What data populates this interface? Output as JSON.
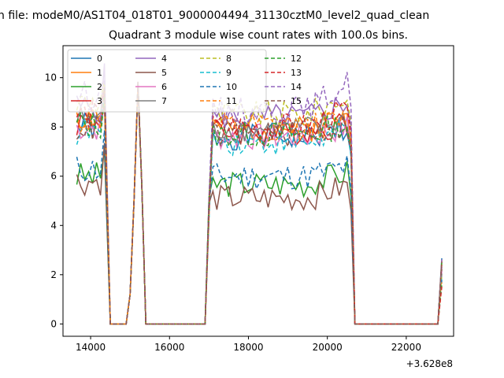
{
  "chart_data": {
    "type": "line",
    "suptitle": "n file: modeM0/AS1T04_018T01_9000004494_31130cztM0_level2_quad_clean",
    "title": "Quadrant 3 module wise count rates with 100.0s bins.",
    "xlabel": "",
    "ylabel": "",
    "x_offset_label": "+3.628e8",
    "xlim": [
      13300,
      23200
    ],
    "ylim": [
      -0.5,
      11.3
    ],
    "xticks": [
      14000,
      16000,
      18000,
      20000,
      22000
    ],
    "xtick_labels": [
      "14000",
      "16000",
      "18000",
      "20000",
      "22000"
    ],
    "yticks": [
      0,
      2,
      4,
      6,
      8,
      10
    ],
    "ytick_labels": [
      "0",
      "2",
      "4",
      "6",
      "8",
      "10"
    ],
    "grid": false,
    "legend": {
      "placement": "top-left",
      "columns": 4
    },
    "x_segments": [
      [
        13650,
        14350
      ],
      [
        14500,
        14500
      ],
      [
        14700,
        15400
      ],
      [
        15800,
        16900
      ],
      [
        17050,
        20650
      ],
      [
        20700,
        22800
      ]
    ],
    "series": [
      {
        "name": "0",
        "color": "#1f77b4",
        "dash": false,
        "levels": {
          "a": 8.0,
          "b": 7.6,
          "c": 7.9
        },
        "seed": 1
      },
      {
        "name": "1",
        "color": "#ff7f0e",
        "dash": false,
        "levels": {
          "a": 8.4,
          "b": 7.9,
          "c": 8.4
        },
        "seed": 2
      },
      {
        "name": "2",
        "color": "#2ca02c",
        "dash": false,
        "levels": {
          "a": 6.0,
          "b": 5.7,
          "c": 6.2
        },
        "seed": 3
      },
      {
        "name": "3",
        "color": "#d62728",
        "dash": false,
        "levels": {
          "a": 8.2,
          "b": 7.8,
          "c": 8.2
        },
        "seed": 4
      },
      {
        "name": "4",
        "color": "#9467bd",
        "dash": false,
        "levels": {
          "a": 8.8,
          "b": 8.4,
          "c": 9.0
        },
        "seed": 5
      },
      {
        "name": "5",
        "color": "#8c564b",
        "dash": false,
        "levels": {
          "a": 5.8,
          "b": 5.1,
          "c": 5.6
        },
        "seed": 6
      },
      {
        "name": "6",
        "color": "#e377c2",
        "dash": false,
        "levels": {
          "a": 8.0,
          "b": 7.6,
          "c": 8.0
        },
        "seed": 7
      },
      {
        "name": "7",
        "color": "#7f7f7f",
        "dash": false,
        "levels": {
          "a": 8.3,
          "b": 7.9,
          "c": 8.3
        },
        "seed": 8
      },
      {
        "name": "8",
        "color": "#bcbd22",
        "dash": true,
        "levels": {
          "a": 9.0,
          "b": 8.5,
          "c": 9.2
        },
        "seed": 9
      },
      {
        "name": "9",
        "color": "#17becf",
        "dash": true,
        "levels": {
          "a": 7.8,
          "b": 7.4,
          "c": 7.8
        },
        "seed": 10
      },
      {
        "name": "10",
        "color": "#1f77b4",
        "dash": true,
        "levels": {
          "a": 6.3,
          "b": 6.0,
          "c": 6.4
        },
        "seed": 11
      },
      {
        "name": "11",
        "color": "#ff7f0e",
        "dash": true,
        "levels": {
          "a": 8.3,
          "b": 8.0,
          "c": 8.3
        },
        "seed": 12
      },
      {
        "name": "12",
        "color": "#2ca02c",
        "dash": true,
        "levels": {
          "a": 8.1,
          "b": 7.7,
          "c": 8.1
        },
        "seed": 13
      },
      {
        "name": "13",
        "color": "#d62728",
        "dash": true,
        "levels": {
          "a": 8.5,
          "b": 8.0,
          "c": 8.7
        },
        "seed": 14
      },
      {
        "name": "14",
        "color": "#9467bd",
        "dash": true,
        "levels": {
          "a": 9.3,
          "b": 8.7,
          "c": 9.8
        },
        "seed": 15
      },
      {
        "name": "15",
        "color": "#8c564b",
        "dash": true,
        "levels": {
          "a": 8.0,
          "b": 7.7,
          "c": 8.1
        },
        "seed": 16
      }
    ],
    "spike": {
      "x": 15200,
      "y": 10.0
    },
    "end_point": {
      "x": 22900,
      "y": 2.7
    }
  }
}
